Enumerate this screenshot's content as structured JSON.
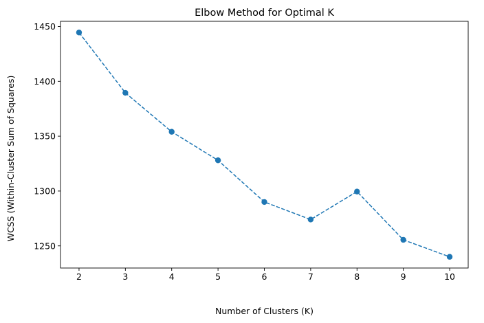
{
  "chart_data": {
    "type": "line",
    "title": "Elbow Method for Optimal K",
    "xlabel": "Number of Clusters (K)",
    "ylabel": "WCSS (Within-Cluster Sum of Squares)",
    "x": [
      2,
      3,
      4,
      5,
      6,
      7,
      8,
      9,
      10
    ],
    "series": [
      {
        "values": [
          1444.5,
          1389.5,
          1354.0,
          1328.0,
          1290.0,
          1274.0,
          1299.5,
          1255.5,
          1240.0
        ],
        "color": "#1f77b4",
        "line_style": "dashed",
        "marker": "circle"
      }
    ],
    "xticks": [
      2,
      3,
      4,
      5,
      6,
      7,
      8,
      9,
      10
    ],
    "yticks": [
      1250,
      1300,
      1350,
      1400,
      1450
    ],
    "xlim": [
      1.6,
      10.4
    ],
    "ylim": [
      1229.8,
      1454.7
    ],
    "grid": false,
    "legend": false
  }
}
